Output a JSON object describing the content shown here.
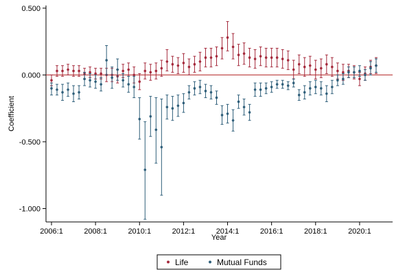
{
  "chart_data": {
    "type": "scatter",
    "subtype": "coefficient-plot-with-error-bars",
    "xlabel": "Year",
    "ylabel": "Coefficient",
    "x_ticks": [
      "2006:1",
      "2008:1",
      "2010:1",
      "2012:1",
      "2014:1",
      "2016:1",
      "2018:1",
      "2020:1"
    ],
    "y_ticks": [
      "0.500",
      "0.000",
      "-0.500",
      "-1.000"
    ],
    "xlim": [
      "2005:4",
      "2021:3"
    ],
    "ylim": [
      -1.1,
      0.52
    ],
    "reference_line": {
      "y": 0,
      "color": "#b22222"
    },
    "grid": false,
    "legend_position": "bottom",
    "series": [
      {
        "name": "Life",
        "color": "#a52a3c",
        "points": [
          {
            "x": "2006:1",
            "y": -0.04,
            "ci": [
              -0.08,
              0.0
            ]
          },
          {
            "x": "2006:2",
            "y": 0.03,
            "ci": [
              -0.01,
              0.07
            ]
          },
          {
            "x": "2006:3",
            "y": 0.03,
            "ci": [
              -0.01,
              0.07
            ]
          },
          {
            "x": "2006:4",
            "y": 0.04,
            "ci": [
              0.0,
              0.08
            ]
          },
          {
            "x": "2007:1",
            "y": 0.03,
            "ci": [
              -0.01,
              0.07
            ]
          },
          {
            "x": "2007:2",
            "y": 0.03,
            "ci": [
              -0.01,
              0.07
            ]
          },
          {
            "x": "2007:3",
            "y": 0.01,
            "ci": [
              -0.03,
              0.05
            ]
          },
          {
            "x": "2007:4",
            "y": 0.02,
            "ci": [
              -0.02,
              0.06
            ]
          },
          {
            "x": "2008:1",
            "y": 0.01,
            "ci": [
              -0.03,
              0.05
            ]
          },
          {
            "x": "2008:2",
            "y": 0.01,
            "ci": [
              -0.03,
              0.05
            ]
          },
          {
            "x": "2008:3",
            "y": 0.0,
            "ci": [
              -0.05,
              0.05
            ]
          },
          {
            "x": "2008:4",
            "y": 0.0,
            "ci": [
              -0.05,
              0.05
            ]
          },
          {
            "x": "2009:1",
            "y": -0.01,
            "ci": [
              -0.06,
              0.04
            ]
          },
          {
            "x": "2009:2",
            "y": 0.03,
            "ci": [
              -0.02,
              0.08
            ]
          },
          {
            "x": "2009:3",
            "y": 0.04,
            "ci": [
              -0.01,
              0.09
            ]
          },
          {
            "x": "2009:4",
            "y": 0.0,
            "ci": [
              -0.06,
              0.06
            ]
          },
          {
            "x": "2010:1",
            "y": -0.05,
            "ci": [
              -0.11,
              0.01
            ]
          },
          {
            "x": "2010:2",
            "y": 0.03,
            "ci": [
              -0.03,
              0.09
            ]
          },
          {
            "x": "2010:3",
            "y": 0.02,
            "ci": [
              -0.04,
              0.08
            ]
          },
          {
            "x": "2010:4",
            "y": 0.03,
            "ci": [
              -0.03,
              0.09
            ]
          },
          {
            "x": "2011:1",
            "y": 0.05,
            "ci": [
              -0.01,
              0.11
            ]
          },
          {
            "x": "2011:2",
            "y": 0.1,
            "ci": [
              0.03,
              0.19
            ]
          },
          {
            "x": "2011:3",
            "y": 0.08,
            "ci": [
              0.02,
              0.14
            ]
          },
          {
            "x": "2011:4",
            "y": 0.07,
            "ci": [
              0.01,
              0.13
            ]
          },
          {
            "x": "2012:1",
            "y": 0.09,
            "ci": [
              0.02,
              0.16
            ]
          },
          {
            "x": "2012:2",
            "y": 0.06,
            "ci": [
              0.0,
              0.12
            ]
          },
          {
            "x": "2012:3",
            "y": 0.08,
            "ci": [
              0.02,
              0.14
            ]
          },
          {
            "x": "2012:4",
            "y": 0.1,
            "ci": [
              0.03,
              0.17
            ]
          },
          {
            "x": "2013:1",
            "y": 0.13,
            "ci": [
              0.06,
              0.2
            ]
          },
          {
            "x": "2013:2",
            "y": 0.13,
            "ci": [
              0.06,
              0.2
            ]
          },
          {
            "x": "2013:3",
            "y": 0.14,
            "ci": [
              0.07,
              0.21
            ]
          },
          {
            "x": "2013:4",
            "y": 0.2,
            "ci": [
              0.12,
              0.28
            ]
          },
          {
            "x": "2014:1",
            "y": 0.28,
            "ci": [
              0.18,
              0.4
            ]
          },
          {
            "x": "2014:2",
            "y": 0.21,
            "ci": [
              0.12,
              0.31
            ]
          },
          {
            "x": "2014:3",
            "y": 0.15,
            "ci": [
              0.07,
              0.23
            ]
          },
          {
            "x": "2014:4",
            "y": 0.16,
            "ci": [
              0.08,
              0.24
            ]
          },
          {
            "x": "2015:1",
            "y": 0.13,
            "ci": [
              0.06,
              0.2
            ]
          },
          {
            "x": "2015:2",
            "y": 0.12,
            "ci": [
              0.05,
              0.19
            ]
          },
          {
            "x": "2015:3",
            "y": 0.14,
            "ci": [
              0.07,
              0.21
            ]
          },
          {
            "x": "2015:4",
            "y": 0.13,
            "ci": [
              0.06,
              0.2
            ]
          },
          {
            "x": "2016:1",
            "y": 0.13,
            "ci": [
              0.06,
              0.2
            ]
          },
          {
            "x": "2016:2",
            "y": 0.13,
            "ci": [
              0.06,
              0.2
            ]
          },
          {
            "x": "2016:3",
            "y": 0.12,
            "ci": [
              0.05,
              0.19
            ]
          },
          {
            "x": "2016:4",
            "y": 0.11,
            "ci": [
              0.04,
              0.18
            ]
          },
          {
            "x": "2017:1",
            "y": 0.04,
            "ci": [
              -0.03,
              0.11
            ]
          },
          {
            "x": "2017:2",
            "y": 0.08,
            "ci": [
              0.01,
              0.15
            ]
          },
          {
            "x": "2017:3",
            "y": 0.06,
            "ci": [
              -0.01,
              0.13
            ]
          },
          {
            "x": "2017:4",
            "y": 0.07,
            "ci": [
              0.0,
              0.14
            ]
          },
          {
            "x": "2018:1",
            "y": 0.04,
            "ci": [
              -0.03,
              0.11
            ]
          },
          {
            "x": "2018:2",
            "y": 0.05,
            "ci": [
              -0.02,
              0.12
            ]
          },
          {
            "x": "2018:3",
            "y": 0.08,
            "ci": [
              0.01,
              0.15
            ]
          },
          {
            "x": "2018:4",
            "y": 0.06,
            "ci": [
              -0.01,
              0.13
            ]
          },
          {
            "x": "2019:1",
            "y": 0.03,
            "ci": [
              -0.03,
              0.09
            ]
          },
          {
            "x": "2019:2",
            "y": 0.02,
            "ci": [
              -0.04,
              0.08
            ]
          },
          {
            "x": "2019:3",
            "y": 0.03,
            "ci": [
              -0.02,
              0.08
            ]
          },
          {
            "x": "2019:4",
            "y": 0.02,
            "ci": [
              -0.03,
              0.07
            ]
          },
          {
            "x": "2020:1",
            "y": -0.03,
            "ci": [
              -0.08,
              0.02
            ]
          },
          {
            "x": "2020:2",
            "y": 0.01,
            "ci": [
              -0.04,
              0.06
            ]
          },
          {
            "x": "2020:3",
            "y": 0.06,
            "ci": [
              0.01,
              0.11
            ]
          },
          {
            "x": "2020:4",
            "y": 0.07,
            "ci": [
              0.01,
              0.13
            ]
          }
        ]
      },
      {
        "name": "Mutual Funds",
        "color": "#2f5f7a",
        "points": [
          {
            "x": "2006:1",
            "y": -0.1,
            "ci": [
              -0.15,
              -0.06
            ]
          },
          {
            "x": "2006:2",
            "y": -0.11,
            "ci": [
              -0.15,
              -0.07
            ]
          },
          {
            "x": "2006:3",
            "y": -0.13,
            "ci": [
              -0.19,
              -0.07
            ]
          },
          {
            "x": "2006:4",
            "y": -0.11,
            "ci": [
              -0.16,
              -0.06
            ]
          },
          {
            "x": "2007:1",
            "y": -0.14,
            "ci": [
              -0.2,
              -0.08
            ]
          },
          {
            "x": "2007:2",
            "y": -0.13,
            "ci": [
              -0.18,
              -0.08
            ]
          },
          {
            "x": "2007:3",
            "y": -0.03,
            "ci": [
              -0.08,
              0.02
            ]
          },
          {
            "x": "2007:4",
            "y": -0.04,
            "ci": [
              -0.09,
              0.01
            ]
          },
          {
            "x": "2008:1",
            "y": -0.05,
            "ci": [
              -0.1,
              0.0
            ]
          },
          {
            "x": "2008:2",
            "y": -0.07,
            "ci": [
              -0.12,
              -0.02
            ]
          },
          {
            "x": "2008:3",
            "y": 0.11,
            "ci": [
              0.0,
              0.22
            ]
          },
          {
            "x": "2008:4",
            "y": -0.02,
            "ci": [
              -0.1,
              0.06
            ]
          },
          {
            "x": "2009:1",
            "y": 0.04,
            "ci": [
              -0.04,
              0.12
            ]
          },
          {
            "x": "2009:2",
            "y": -0.04,
            "ci": [
              -0.09,
              0.01
            ]
          },
          {
            "x": "2009:3",
            "y": -0.07,
            "ci": [
              -0.13,
              -0.01
            ]
          },
          {
            "x": "2009:4",
            "y": -0.09,
            "ci": [
              -0.17,
              -0.01
            ]
          },
          {
            "x": "2010:1",
            "y": -0.33,
            "ci": [
              -0.48,
              -0.17
            ]
          },
          {
            "x": "2010:2",
            "y": -0.71,
            "ci": [
              -1.08,
              -0.35
            ]
          },
          {
            "x": "2010:3",
            "y": -0.31,
            "ci": [
              -0.46,
              -0.16
            ]
          },
          {
            "x": "2010:4",
            "y": -0.41,
            "ci": [
              -0.66,
              -0.17
            ]
          },
          {
            "x": "2011:1",
            "y": -0.54,
            "ci": [
              -0.9,
              -0.18
            ]
          },
          {
            "x": "2011:2",
            "y": -0.24,
            "ci": [
              -0.33,
              -0.15
            ]
          },
          {
            "x": "2011:3",
            "y": -0.25,
            "ci": [
              -0.34,
              -0.16
            ]
          },
          {
            "x": "2011:4",
            "y": -0.23,
            "ci": [
              -0.31,
              -0.15
            ]
          },
          {
            "x": "2012:1",
            "y": -0.21,
            "ci": [
              -0.28,
              -0.14
            ]
          },
          {
            "x": "2012:2",
            "y": -0.13,
            "ci": [
              -0.18,
              -0.08
            ]
          },
          {
            "x": "2012:3",
            "y": -0.1,
            "ci": [
              -0.15,
              -0.05
            ]
          },
          {
            "x": "2012:4",
            "y": -0.09,
            "ci": [
              -0.14,
              -0.04
            ]
          },
          {
            "x": "2013:1",
            "y": -0.12,
            "ci": [
              -0.17,
              -0.07
            ]
          },
          {
            "x": "2013:2",
            "y": -0.13,
            "ci": [
              -0.18,
              -0.08
            ]
          },
          {
            "x": "2013:3",
            "y": -0.17,
            "ci": [
              -0.22,
              -0.12
            ]
          },
          {
            "x": "2013:4",
            "y": -0.3,
            "ci": [
              -0.37,
              -0.23
            ]
          },
          {
            "x": "2014:1",
            "y": -0.29,
            "ci": [
              -0.36,
              -0.22
            ]
          },
          {
            "x": "2014:2",
            "y": -0.34,
            "ci": [
              -0.42,
              -0.26
            ]
          },
          {
            "x": "2014:3",
            "y": -0.2,
            "ci": [
              -0.25,
              -0.15
            ]
          },
          {
            "x": "2014:4",
            "y": -0.24,
            "ci": [
              -0.3,
              -0.18
            ]
          },
          {
            "x": "2015:1",
            "y": -0.28,
            "ci": [
              -0.34,
              -0.22
            ]
          },
          {
            "x": "2015:2",
            "y": -0.11,
            "ci": [
              -0.16,
              -0.06
            ]
          },
          {
            "x": "2015:3",
            "y": -0.11,
            "ci": [
              -0.16,
              -0.06
            ]
          },
          {
            "x": "2015:4",
            "y": -0.1,
            "ci": [
              -0.14,
              -0.06
            ]
          },
          {
            "x": "2016:1",
            "y": -0.09,
            "ci": [
              -0.13,
              -0.05
            ]
          },
          {
            "x": "2016:2",
            "y": -0.07,
            "ci": [
              -0.1,
              -0.04
            ]
          },
          {
            "x": "2016:3",
            "y": -0.07,
            "ci": [
              -0.1,
              -0.04
            ]
          },
          {
            "x": "2016:4",
            "y": -0.08,
            "ci": [
              -0.11,
              -0.05
            ]
          },
          {
            "x": "2017:1",
            "y": -0.06,
            "ci": [
              -0.09,
              -0.03
            ]
          },
          {
            "x": "2017:2",
            "y": -0.15,
            "ci": [
              -0.19,
              -0.11
            ]
          },
          {
            "x": "2017:3",
            "y": -0.13,
            "ci": [
              -0.18,
              -0.08
            ]
          },
          {
            "x": "2017:4",
            "y": -0.1,
            "ci": [
              -0.15,
              -0.05
            ]
          },
          {
            "x": "2018:1",
            "y": -0.09,
            "ci": [
              -0.14,
              -0.04
            ]
          },
          {
            "x": "2018:2",
            "y": -0.1,
            "ci": [
              -0.15,
              -0.05
            ]
          },
          {
            "x": "2018:3",
            "y": -0.14,
            "ci": [
              -0.2,
              -0.08
            ]
          },
          {
            "x": "2018:4",
            "y": -0.09,
            "ci": [
              -0.14,
              -0.04
            ]
          },
          {
            "x": "2019:1",
            "y": -0.04,
            "ci": [
              -0.08,
              0.0
            ]
          },
          {
            "x": "2019:2",
            "y": -0.03,
            "ci": [
              -0.07,
              0.01
            ]
          },
          {
            "x": "2019:3",
            "y": 0.02,
            "ci": [
              -0.02,
              0.06
            ]
          },
          {
            "x": "2019:4",
            "y": 0.02,
            "ci": [
              -0.02,
              0.06
            ]
          },
          {
            "x": "2020:1",
            "y": 0.03,
            "ci": [
              -0.01,
              0.07
            ]
          },
          {
            "x": "2020:2",
            "y": 0.0,
            "ci": [
              -0.04,
              0.04
            ]
          },
          {
            "x": "2020:3",
            "y": 0.05,
            "ci": [
              0.0,
              0.1
            ]
          },
          {
            "x": "2020:4",
            "y": 0.07,
            "ci": [
              0.02,
              0.12
            ]
          }
        ]
      }
    ]
  }
}
